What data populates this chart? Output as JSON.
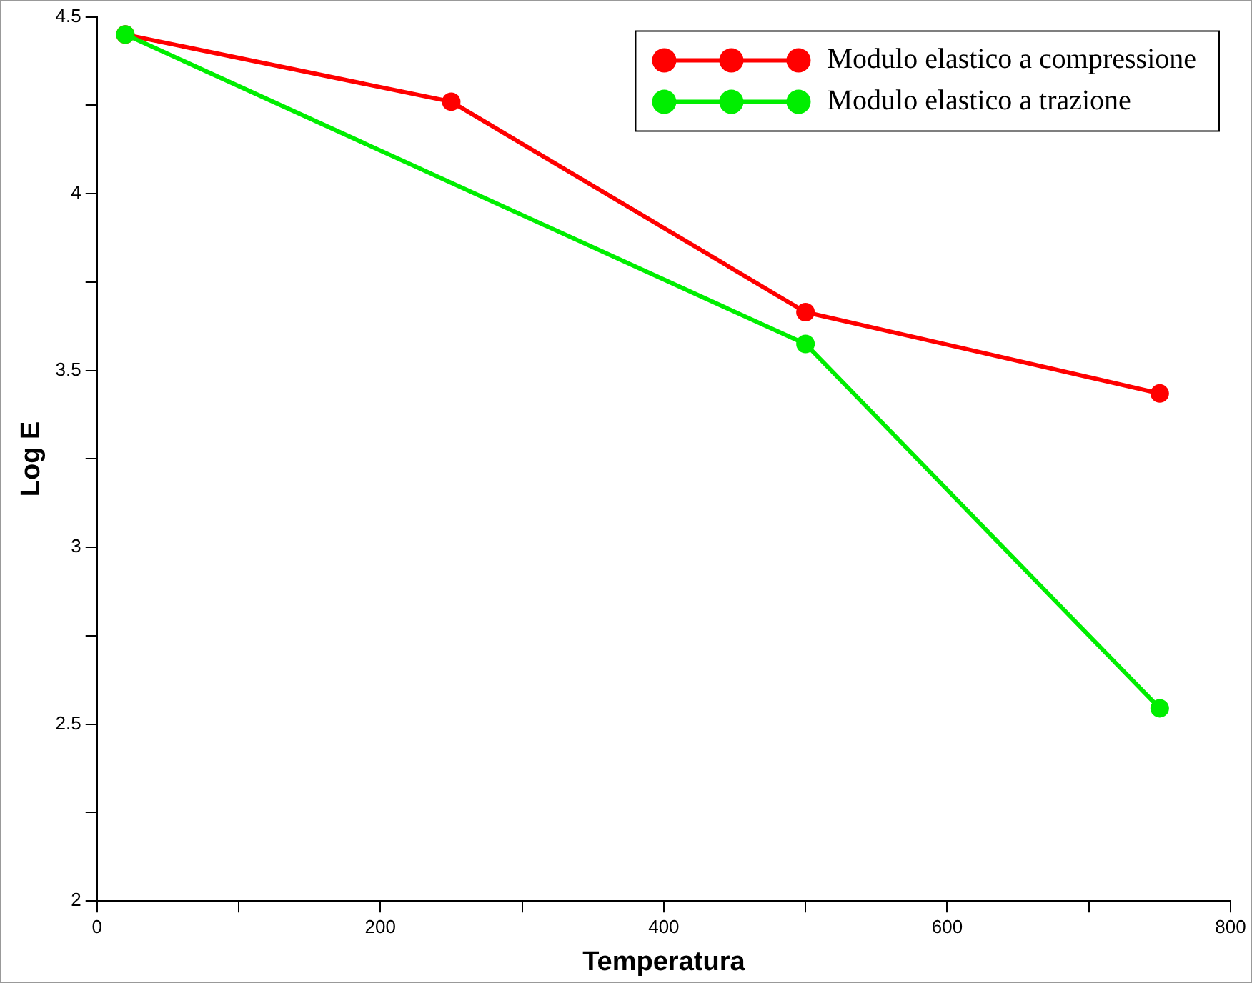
{
  "chart_data": {
    "type": "line",
    "xlabel": "Temperatura",
    "ylabel": "Log E",
    "x": [
      20,
      250,
      500,
      750
    ],
    "series": [
      {
        "name": "Modulo elastico a compressione",
        "color": "#ff0000",
        "values": [
          4.45,
          4.26,
          3.665,
          3.435
        ]
      },
      {
        "name": "Modulo elastico a trazione",
        "color": "#00ee00",
        "x": [
          20,
          500,
          750
        ],
        "values": [
          4.45,
          3.575,
          2.545
        ]
      }
    ],
    "xlim": [
      0,
      800
    ],
    "xticks": [
      0,
      {
        "value": 100,
        "label": null
      },
      200,
      {
        "value": 300,
        "label": null
      },
      400,
      {
        "value": 500,
        "label": null
      },
      600,
      {
        "value": 700,
        "label": null
      },
      800
    ],
    "ylim": [
      2,
      4.5
    ],
    "yticks": [
      2,
      {
        "value": 2.25,
        "label": null
      },
      2.5,
      {
        "value": 2.75,
        "label": null
      },
      3,
      {
        "value": 3.25,
        "label": null
      },
      3.5,
      {
        "value": 3.75,
        "label": null
      },
      4,
      {
        "value": 4.25,
        "label": null
      },
      4.5
    ],
    "grid": false,
    "legend": "top right",
    "marker": "circle",
    "line_style": "solid"
  }
}
